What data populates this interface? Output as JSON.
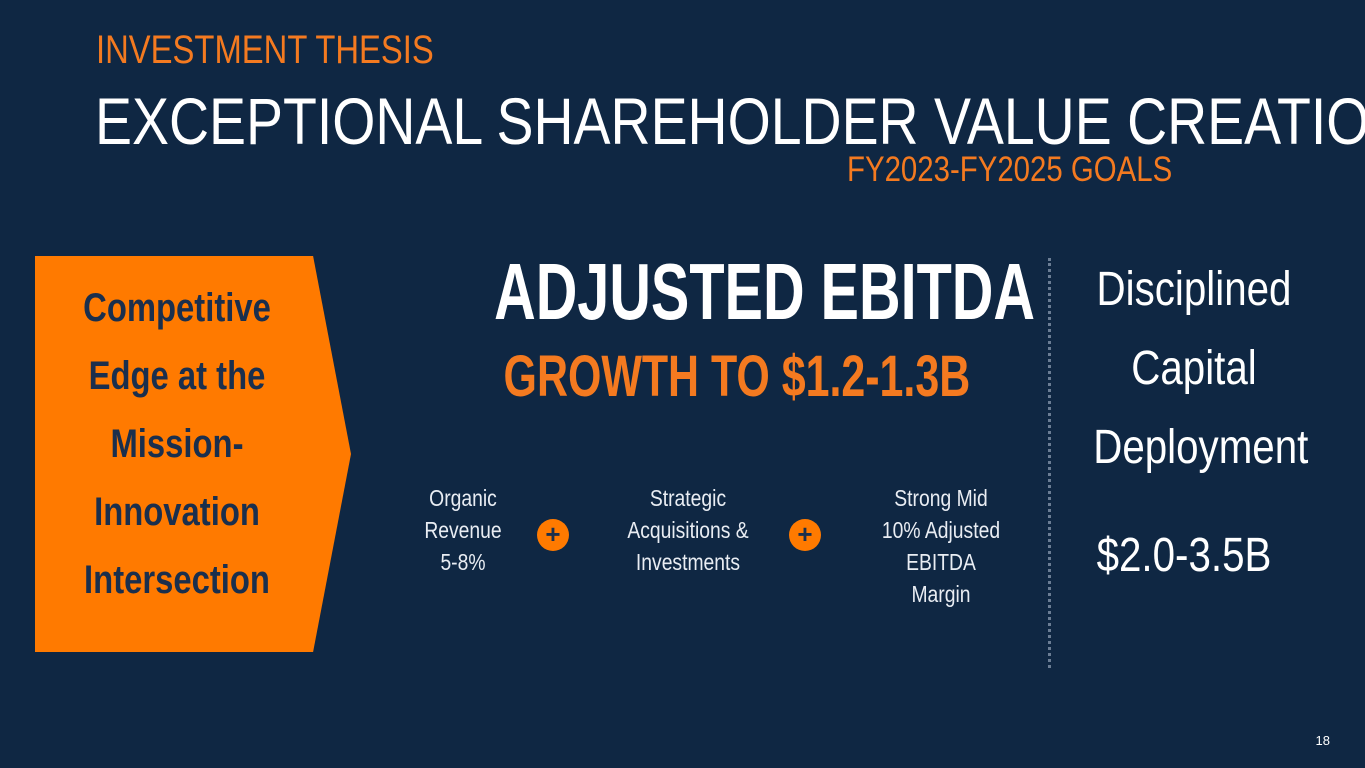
{
  "header": {
    "kicker": "INVESTMENT THESIS",
    "title": "EXCEPTIONAL SHAREHOLDER VALUE CREATION",
    "goals": "FY2023-FY2025 GOALS"
  },
  "chevron": {
    "text": "Competitive\nEdge at the\nMission-\nInnovation\nIntersection"
  },
  "ebitda": {
    "heading": "ADJUSTED EBITDA",
    "subheading": "GROWTH TO $1.2-1.3B"
  },
  "components": [
    {
      "label": "Organic\nRevenue\n5-8%"
    },
    {
      "label": "Strategic\nAcquisitions &\nInvestments"
    },
    {
      "label": "Strong Mid\n10% Adjusted EBITDA\nMargin"
    }
  ],
  "operators": [
    "+",
    "+"
  ],
  "deployment": {
    "label": "Disciplined\nCapital\nDeployment",
    "amount": "$2.0-3.5B"
  },
  "page_number": "18",
  "colors": {
    "background": "#0f2743",
    "accent": "#f47a20",
    "chevron": "#ff7a00",
    "dark_text": "#1a2f4d"
  }
}
